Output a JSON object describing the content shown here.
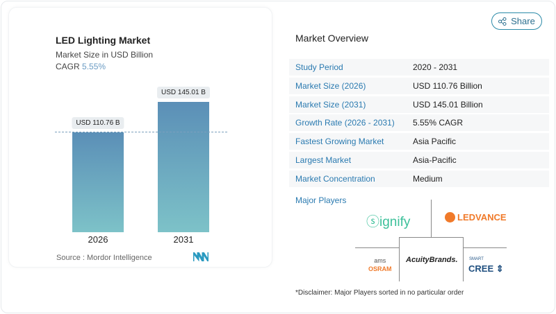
{
  "share_label": "Share",
  "chart": {
    "title": "LED Lighting Market",
    "subtitle": "Market Size in USD Billion",
    "cagr_label": "CAGR",
    "cagr_value": "5.55%",
    "source": "Source :  Mordor Intelligence"
  },
  "chart_data": {
    "type": "bar",
    "categories": [
      "2026",
      "2031"
    ],
    "values": [
      110.76,
      145.01
    ],
    "data_labels": [
      "USD 110.76 B",
      "USD 145.01 B"
    ],
    "title": "LED Lighting Market",
    "subtitle": "Market Size in USD Billion",
    "colors": [
      "#5b8fb7",
      "#7dc2c8"
    ]
  },
  "overview": {
    "title": "Market Overview",
    "rows": [
      {
        "label": "Study Period",
        "value": "2020 - 2031"
      },
      {
        "label": "Market Size (2026)",
        "value": "USD 110.76 Billion"
      },
      {
        "label": "Market Size (2031)",
        "value": "USD 145.01 Billion"
      },
      {
        "label": "Growth Rate (2026 - 2031)",
        "value": "5.55% CAGR"
      },
      {
        "label": "Fastest Growing Market",
        "value": "Asia Pacific"
      },
      {
        "label": "Largest Market",
        "value": "Asia-Pacific"
      },
      {
        "label": "Market Concentration",
        "value": "Medium"
      }
    ]
  },
  "players": {
    "title": "Major Players",
    "logos": [
      "signify",
      "LEDVANCE",
      "ams OSRAM",
      "AcuityBrands",
      "SMART CREE"
    ],
    "disclaimer": "*Disclaimer: Major Players sorted in no particular order"
  }
}
